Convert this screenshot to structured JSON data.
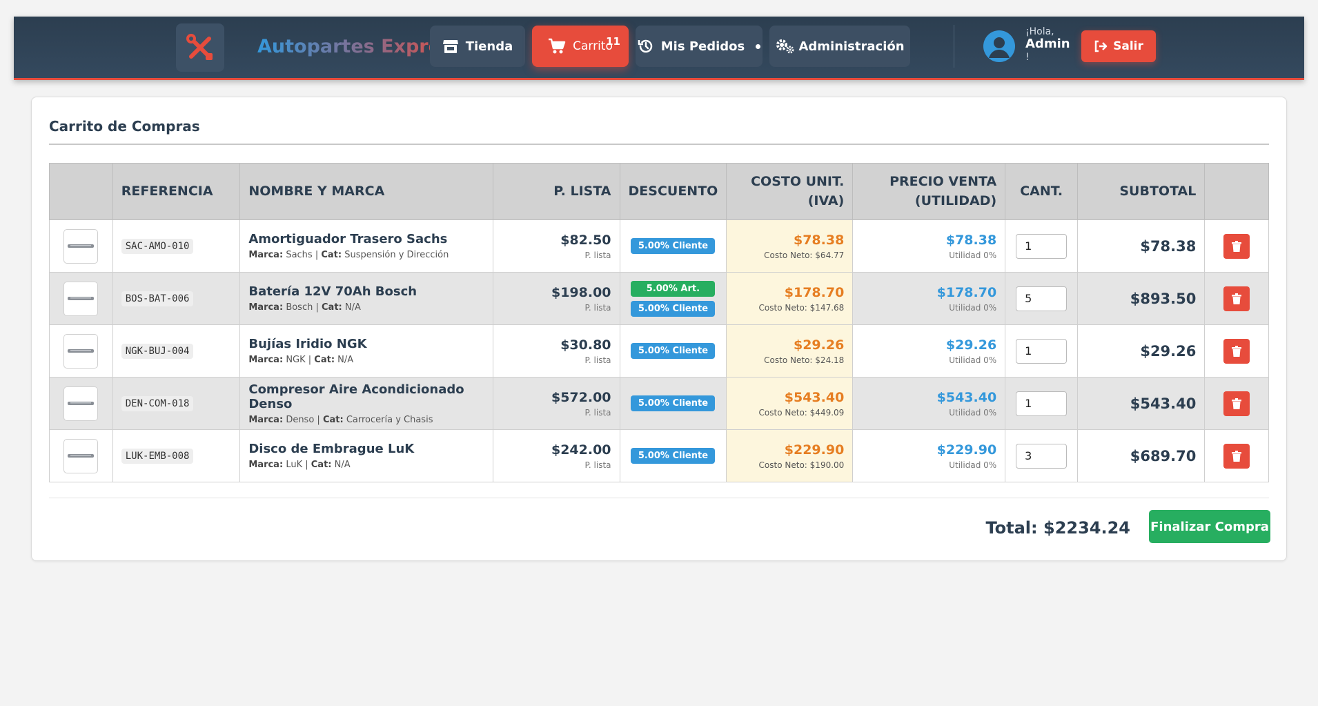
{
  "app": {
    "brand": "Autopartes Express",
    "logo_icon": "tools-icon"
  },
  "nav": {
    "store_label": "Tienda",
    "cart_label": "Carrito",
    "cart_count": "11",
    "orders_label": "Mis Pedidos",
    "admin_label": "Administración"
  },
  "user": {
    "greeting": "¡Hola,",
    "name": "Admin",
    "exclaim": "!",
    "logout_label": "Salir"
  },
  "cart": {
    "title": "Carrito de Compras",
    "columns": {
      "ref": "REFERENCIA",
      "name": "NOMBRE Y MARCA",
      "list": "P. LISTA",
      "discount": "DESCUENTO",
      "cost_line1": "COSTO UNIT.",
      "cost_line2": "(IVA)",
      "sale_line1": "PRECIO VENTA",
      "sale_line2": "(UTILIDAD)",
      "qty": "CANT.",
      "subtotal": "SUBTOTAL"
    },
    "labels": {
      "brand": "Marca:",
      "cat": "Cat:",
      "list_sub": "P. lista",
      "cost_sub_prefix": "Costo Neto:",
      "sale_sub": "Utilidad 0%"
    },
    "items": [
      {
        "ref": "SAC-AMO-010",
        "name": "Amortiguador Trasero Sachs",
        "brand": "Sachs",
        "cat": "Suspensión y Dirección",
        "list": "$82.50",
        "discounts": [
          "5.00% Cliente"
        ],
        "cost": "$78.38",
        "cost_net": "$64.77",
        "sale": "$78.38",
        "qty": "1",
        "subtotal": "$78.38"
      },
      {
        "ref": "BOS-BAT-006",
        "name": "Batería 12V 70Ah Bosch",
        "brand": "Bosch",
        "cat": "N/A",
        "list": "$198.00",
        "discounts": [
          "5.00% Art.",
          "5.00% Cliente"
        ],
        "cost": "$178.70",
        "cost_net": "$147.68",
        "sale": "$178.70",
        "qty": "5",
        "subtotal": "$893.50"
      },
      {
        "ref": "NGK-BUJ-004",
        "name": "Bujías Iridio NGK",
        "brand": "NGK",
        "cat": "N/A",
        "list": "$30.80",
        "discounts": [
          "5.00% Cliente"
        ],
        "cost": "$29.26",
        "cost_net": "$24.18",
        "sale": "$29.26",
        "qty": "1",
        "subtotal": "$29.26"
      },
      {
        "ref": "DEN-COM-018",
        "name": "Compresor Aire Acondicionado Denso",
        "brand": "Denso",
        "cat": "Carrocería y Chasis",
        "list": "$572.00",
        "discounts": [
          "5.00% Cliente"
        ],
        "cost": "$543.40",
        "cost_net": "$449.09",
        "sale": "$543.40",
        "qty": "1",
        "subtotal": "$543.40"
      },
      {
        "ref": "LUK-EMB-008",
        "name": "Disco de Embrague LuK",
        "brand": "LuK",
        "cat": "N/A",
        "list": "$242.00",
        "discounts": [
          "5.00% Cliente"
        ],
        "cost": "$229.90",
        "cost_net": "$190.00",
        "sale": "$229.90",
        "qty": "3",
        "subtotal": "$689.70"
      }
    ],
    "total_label": "Total: $2234.24",
    "finalize_label": "Finalizar Compra"
  },
  "colors": {
    "navbar": "#2c3e50",
    "accent_red": "#e74c3c",
    "accent_blue": "#3498db",
    "accent_green": "#27ae60",
    "cost_orange": "#e67e22"
  }
}
